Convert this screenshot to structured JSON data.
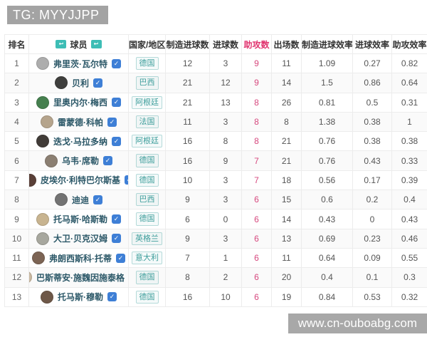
{
  "banner": {
    "text": "TG: MYYJJPP"
  },
  "watermark": {
    "text": "www.cn-ouboabg.com"
  },
  "icons": {
    "player_header_sort": "↩",
    "verified_check": "✓"
  },
  "colors": {
    "assist_accent": "#e0336e",
    "country_tag": "#3c9d9b",
    "player_name": "#2c5868",
    "check_badge": "#3e7fd6",
    "header_icon_bg": "#3dbdb5",
    "banner_bg": "#a3a3a3"
  },
  "table": {
    "columns": {
      "rank": "排名",
      "player": "球员",
      "country": "国家/地区",
      "goals_created": "制造进球数",
      "goals": "进球数",
      "assists": "助攻数",
      "appearances": "出场数",
      "goals_created_rate": "制造进球效率",
      "goals_rate": "进球效率",
      "assists_rate": "助攻效率"
    },
    "rows": [
      {
        "rank": "1",
        "name": "弗里茨·瓦尔特",
        "country": "德国",
        "goals_created": "12",
        "goals": "3",
        "assists": "9",
        "appearances": "11",
        "goals_created_rate": "1.09",
        "goals_rate": "0.27",
        "assists_rate": "0.82",
        "avatar_color": "#adadad"
      },
      {
        "rank": "2",
        "name": "贝利",
        "country": "巴西",
        "goals_created": "21",
        "goals": "12",
        "assists": "9",
        "appearances": "14",
        "goals_created_rate": "1.5",
        "goals_rate": "0.86",
        "assists_rate": "0.64",
        "avatar_color": "#3f3f3d"
      },
      {
        "rank": "3",
        "name": "里奥内尔·梅西",
        "country": "阿根廷",
        "goals_created": "21",
        "goals": "13",
        "assists": "8",
        "appearances": "26",
        "goals_created_rate": "0.81",
        "goals_rate": "0.5",
        "assists_rate": "0.31",
        "avatar_color": "#46804f"
      },
      {
        "rank": "4",
        "name": "雷蒙德·科帕",
        "country": "法国",
        "goals_created": "11",
        "goals": "3",
        "assists": "8",
        "appearances": "8",
        "goals_created_rate": "1.38",
        "goals_rate": "0.38",
        "assists_rate": "1",
        "avatar_color": "#b5a48c"
      },
      {
        "rank": "5",
        "name": "迭戈·马拉多纳",
        "country": "阿根廷",
        "goals_created": "16",
        "goals": "8",
        "assists": "8",
        "appearances": "21",
        "goals_created_rate": "0.76",
        "goals_rate": "0.38",
        "assists_rate": "0.38",
        "avatar_color": "#413c38"
      },
      {
        "rank": "6",
        "name": "乌韦·席勒",
        "country": "德国",
        "goals_created": "16",
        "goals": "9",
        "assists": "7",
        "appearances": "21",
        "goals_created_rate": "0.76",
        "goals_rate": "0.43",
        "assists_rate": "0.33",
        "avatar_color": "#8b7f72"
      },
      {
        "rank": "7",
        "name": "皮埃尔·利特巴尔斯基",
        "country": "德国",
        "goals_created": "10",
        "goals": "3",
        "assists": "7",
        "appearances": "18",
        "goals_created_rate": "0.56",
        "goals_rate": "0.17",
        "assists_rate": "0.39",
        "avatar_color": "#5a4038"
      },
      {
        "rank": "8",
        "name": "迪迪",
        "country": "巴西",
        "goals_created": "9",
        "goals": "3",
        "assists": "6",
        "appearances": "15",
        "goals_created_rate": "0.6",
        "goals_rate": "0.2",
        "assists_rate": "0.4",
        "avatar_color": "#737373"
      },
      {
        "rank": "9",
        "name": "托马斯·哈斯勒",
        "country": "德国",
        "goals_created": "6",
        "goals": "0",
        "assists": "6",
        "appearances": "14",
        "goals_created_rate": "0.43",
        "goals_rate": "0",
        "assists_rate": "0.43",
        "avatar_color": "#c8b490"
      },
      {
        "rank": "10",
        "name": "大卫·贝克汉姆",
        "country": "英格兰",
        "goals_created": "9",
        "goals": "3",
        "assists": "6",
        "appearances": "13",
        "goals_created_rate": "0.69",
        "goals_rate": "0.23",
        "assists_rate": "0.46",
        "avatar_color": "#a7a79e"
      },
      {
        "rank": "11",
        "name": "弗朗西斯科·托蒂",
        "country": "意大利",
        "goals_created": "7",
        "goals": "1",
        "assists": "6",
        "appearances": "11",
        "goals_created_rate": "0.64",
        "goals_rate": "0.09",
        "assists_rate": "0.55",
        "avatar_color": "#7c6454"
      },
      {
        "rank": "12",
        "name": "巴斯蒂安·施魏因施泰格",
        "country": "德国",
        "goals_created": "8",
        "goals": "2",
        "assists": "6",
        "appearances": "20",
        "goals_created_rate": "0.4",
        "goals_rate": "0.1",
        "assists_rate": "0.3",
        "avatar_color": "#c9b8a0"
      },
      {
        "rank": "13",
        "name": "托马斯·穆勒",
        "country": "德国",
        "goals_created": "16",
        "goals": "10",
        "assists": "6",
        "appearances": "19",
        "goals_created_rate": "0.84",
        "goals_rate": "0.53",
        "assists_rate": "0.32",
        "avatar_color": "#6e5848"
      }
    ]
  }
}
